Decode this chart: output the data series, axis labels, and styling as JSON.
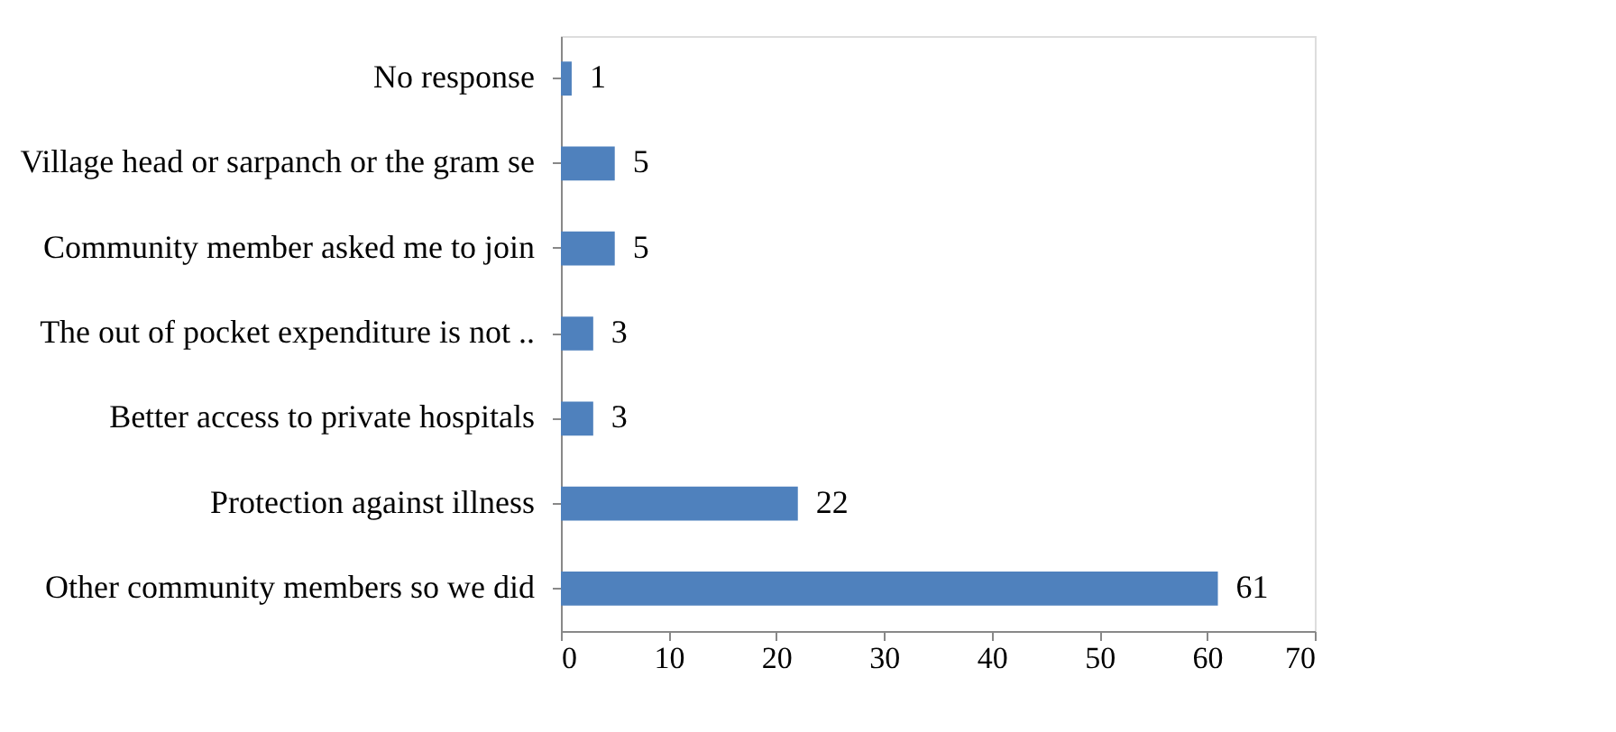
{
  "chart_data": {
    "type": "bar",
    "orientation": "horizontal",
    "categories": [
      "No response",
      "Village head or sarpanch or the gram se",
      "Community member asked me to join",
      "The out of pocket expenditure is not ..",
      "Better access to private hospitals",
      "Protection against illness",
      "Other community members so we did"
    ],
    "values": [
      1,
      5,
      5,
      3,
      3,
      22,
      61
    ],
    "color": "#4f81bd",
    "xlim": [
      0,
      70
    ],
    "xticks": [
      0,
      10,
      20,
      30,
      40,
      50,
      60,
      70
    ],
    "grid": false,
    "data_labels": true
  }
}
